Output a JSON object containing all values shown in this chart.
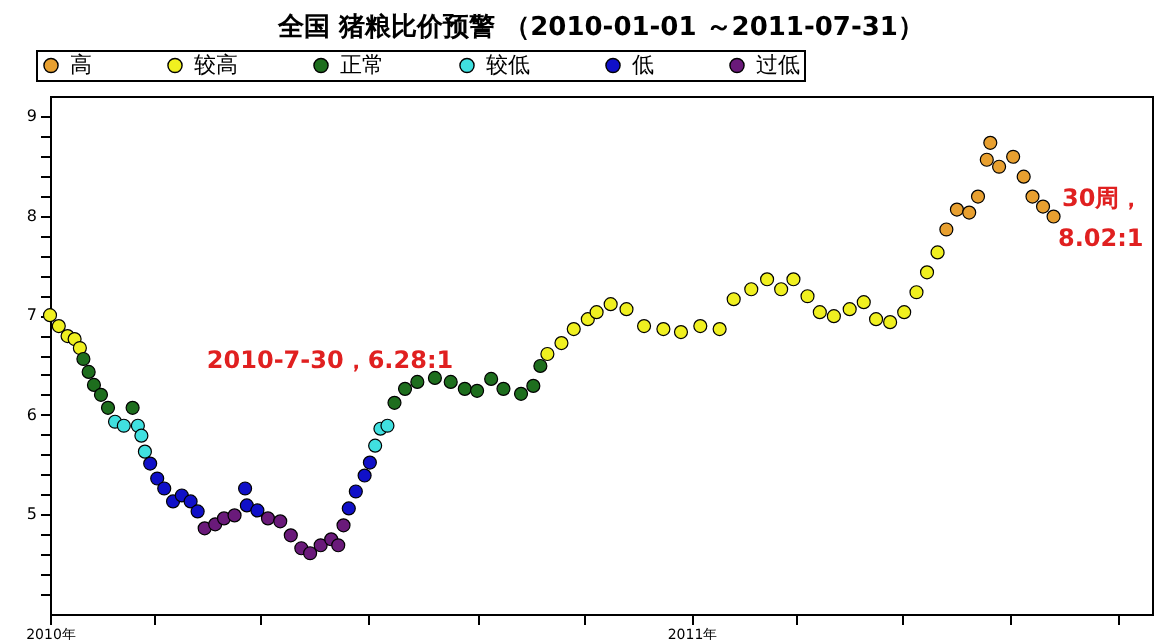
{
  "chart_data": {
    "type": "scatter",
    "title": "全国 猪粮比价预警 （2010-01-01 ～2011-07-31）",
    "legend": "top",
    "marker": "circle",
    "grid": false,
    "xlim": [
      "2010-01-01",
      "2011-09-20"
    ],
    "xticks": [
      {
        "value": "2010-01-01",
        "label": "2010年"
      },
      {
        "value": "2010-03-01",
        "label": null
      },
      {
        "value": "2010-05-01",
        "label": null
      },
      {
        "value": "2010-07-01",
        "label": null
      },
      {
        "value": "2010-09-01",
        "label": null
      },
      {
        "value": "2010-11-01",
        "label": null
      },
      {
        "value": "2011-01-01",
        "label": "2011年"
      },
      {
        "value": "2011-03-01",
        "label": null
      },
      {
        "value": "2011-05-01",
        "label": null
      },
      {
        "value": "2011-07-01",
        "label": null
      },
      {
        "value": "2011-09-01",
        "label": null
      }
    ],
    "ylim": [
      4,
      9.2
    ],
    "yticks": [
      {
        "value": 4.2,
        "label": null
      },
      {
        "value": 4.4,
        "label": null
      },
      {
        "value": 4.6,
        "label": null
      },
      {
        "value": 4.8,
        "label": null
      },
      5,
      {
        "value": 5.2,
        "label": null
      },
      {
        "value": 5.4,
        "label": null
      },
      {
        "value": 5.6,
        "label": null
      },
      {
        "value": 5.8,
        "label": null
      },
      6,
      {
        "value": 6.2,
        "label": null
      },
      {
        "value": 6.4,
        "label": null
      },
      {
        "value": 6.6,
        "label": null
      },
      {
        "value": 6.8,
        "label": null
      },
      7,
      {
        "value": 7.2,
        "label": null
      },
      {
        "value": 7.4,
        "label": null
      },
      {
        "value": 7.6,
        "label": null
      },
      {
        "value": 7.8,
        "label": null
      },
      8,
      {
        "value": 8.2,
        "label": null
      },
      {
        "value": 8.4,
        "label": null
      },
      {
        "value": 8.6,
        "label": null
      },
      {
        "value": 8.8,
        "label": null
      },
      9
    ],
    "annotations": [
      "2010-7-30，6.28:1",
      "30周，",
      "8.02:1"
    ],
    "series": [
      {
        "name": "高",
        "color": "#e8a030",
        "x": [
          "2011-05-26",
          "2011-06-01",
          "2011-06-08",
          "2011-06-13",
          "2011-06-18",
          "2011-06-20",
          "2011-06-25",
          "2011-07-03",
          "2011-07-09",
          "2011-07-14",
          "2011-07-20",
          "2011-07-26"
        ],
        "values": [
          7.86,
          8.06,
          8.03,
          8.19,
          8.56,
          8.73,
          8.49,
          8.59,
          8.39,
          8.19,
          8.09,
          7.99
        ]
      },
      {
        "name": "较高",
        "color": "#f0f020",
        "x": [
          "2010-01-01",
          "2010-01-06",
          "2010-01-11",
          "2010-01-15",
          "2010-01-18",
          "2010-10-11",
          "2010-10-19",
          "2010-10-26",
          "2010-11-03",
          "2010-11-08",
          "2010-11-16",
          "2010-11-25",
          "2010-12-05",
          "2010-12-16",
          "2010-12-26",
          "2011-01-06",
          "2011-01-17",
          "2011-01-25",
          "2011-02-04",
          "2011-02-13",
          "2011-02-21",
          "2011-02-28",
          "2011-03-08",
          "2011-03-15",
          "2011-03-23",
          "2011-04-01",
          "2011-04-09",
          "2011-04-16",
          "2011-04-24",
          "2011-05-02",
          "2011-05-09",
          "2011-05-15",
          "2011-05-21"
        ],
        "values": [
          7.0,
          6.89,
          6.79,
          6.76,
          6.67,
          6.61,
          6.72,
          6.86,
          6.96,
          7.03,
          7.11,
          7.06,
          6.89,
          6.86,
          6.83,
          6.89,
          6.86,
          7.16,
          7.26,
          7.36,
          7.26,
          7.36,
          7.19,
          7.03,
          6.99,
          7.06,
          7.13,
          6.96,
          6.93,
          7.03,
          7.23,
          7.43,
          7.63
        ]
      },
      {
        "name": "正常",
        "color": "#1e6e1e",
        "x": [
          "2010-01-20",
          "2010-01-23",
          "2010-01-26",
          "2010-01-30",
          "2010-02-03",
          "2010-02-17",
          "2010-07-16",
          "2010-07-22",
          "2010-07-29",
          "2010-08-08",
          "2010-08-17",
          "2010-08-25",
          "2010-09-01",
          "2010-09-09",
          "2010-09-16",
          "2010-09-26",
          "2010-10-03",
          "2010-10-07"
        ],
        "values": [
          6.56,
          6.43,
          6.3,
          6.2,
          6.07,
          6.07,
          6.12,
          6.26,
          6.33,
          6.37,
          6.33,
          6.26,
          6.24,
          6.36,
          6.26,
          6.21,
          6.29,
          6.49
        ]
      },
      {
        "name": "较低",
        "color": "#40e0e0",
        "x": [
          "2010-02-07",
          "2010-02-12",
          "2010-02-20",
          "2010-02-22",
          "2010-02-24",
          "2010-07-05",
          "2010-07-08",
          "2010-07-12"
        ],
        "values": [
          5.93,
          5.89,
          5.89,
          5.79,
          5.63,
          5.69,
          5.86,
          5.89
        ]
      },
      {
        "name": "低",
        "color": "#1010c8",
        "x": [
          "2010-02-27",
          "2010-03-03",
          "2010-03-07",
          "2010-03-12",
          "2010-03-17",
          "2010-03-22",
          "2010-03-26",
          "2010-04-22",
          "2010-04-23",
          "2010-04-29",
          "2010-06-20",
          "2010-06-24",
          "2010-06-29",
          "2010-07-02"
        ],
        "values": [
          5.51,
          5.36,
          5.26,
          5.13,
          5.19,
          5.13,
          5.03,
          5.26,
          5.09,
          5.04,
          5.06,
          5.23,
          5.39,
          5.52
        ]
      },
      {
        "name": "过低",
        "color": "#6a1a7a",
        "x": [
          "2010-03-30",
          "2010-04-05",
          "2010-04-10",
          "2010-04-16",
          "2010-05-05",
          "2010-05-12",
          "2010-05-18",
          "2010-05-24",
          "2010-05-29",
          "2010-06-04",
          "2010-06-10",
          "2010-06-14",
          "2010-06-17"
        ],
        "values": [
          4.86,
          4.9,
          4.96,
          4.99,
          4.96,
          4.93,
          4.79,
          4.66,
          4.61,
          4.69,
          4.75,
          4.69,
          4.89
        ]
      }
    ]
  }
}
